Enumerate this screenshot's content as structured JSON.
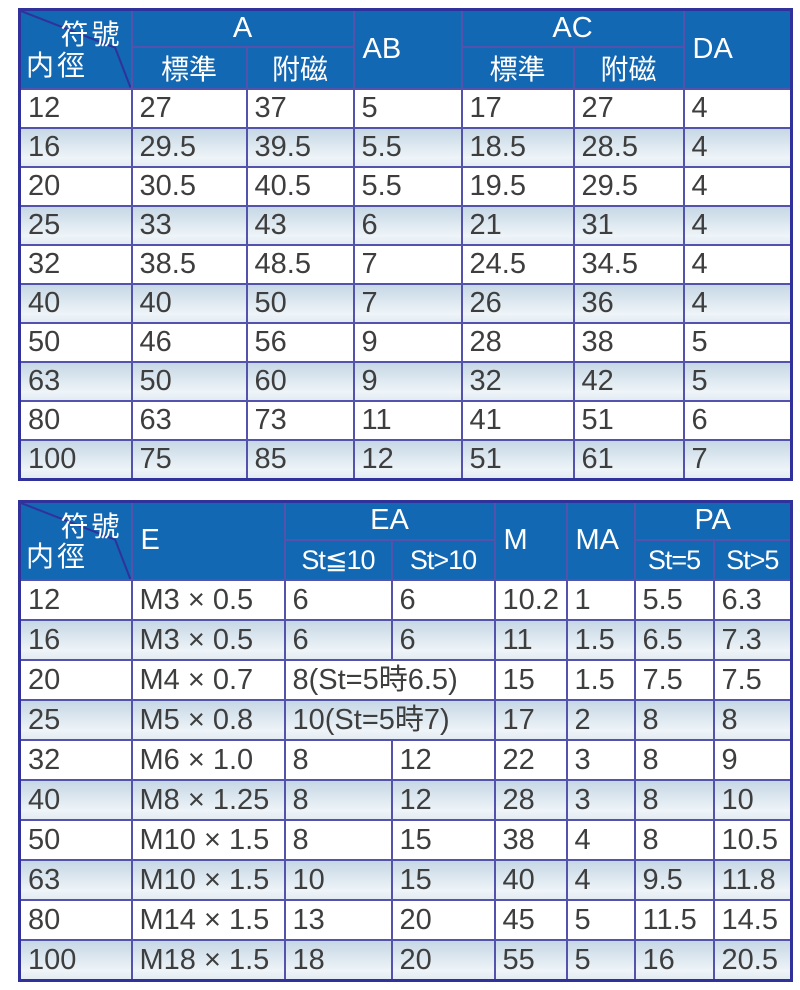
{
  "colors": {
    "header-bg": "#1268b2",
    "header-text": "#ffffff",
    "border-outer": "#31319b",
    "border-inner": "#5353ad",
    "stripe-top": "#c6d7e5",
    "stripe-bottom": "#eef4f8",
    "data-text": "#3e3e3e"
  },
  "table1": {
    "corner_top": "符號",
    "corner_bottom": "内徑",
    "headers": {
      "a": "A",
      "a_standard": "標準",
      "a_magnet": "附磁",
      "ab": "AB",
      "ac": "AC",
      "ac_standard": "標準",
      "ac_magnet": "附磁",
      "da": "DA"
    },
    "rows": [
      [
        "12",
        "27",
        "37",
        "5",
        "17",
        "27",
        "4"
      ],
      [
        "16",
        "29.5",
        "39.5",
        "5.5",
        "18.5",
        "28.5",
        "4"
      ],
      [
        "20",
        "30.5",
        "40.5",
        "5.5",
        "19.5",
        "29.5",
        "4"
      ],
      [
        "25",
        "33",
        "43",
        "6",
        "21",
        "31",
        "4"
      ],
      [
        "32",
        "38.5",
        "48.5",
        "7",
        "24.5",
        "34.5",
        "4"
      ],
      [
        "40",
        "40",
        "50",
        "7",
        "26",
        "36",
        "4"
      ],
      [
        "50",
        "46",
        "56",
        "9",
        "28",
        "38",
        "5"
      ],
      [
        "63",
        "50",
        "60",
        "9",
        "32",
        "42",
        "5"
      ],
      [
        "80",
        "63",
        "73",
        "11",
        "41",
        "51",
        "6"
      ],
      [
        "100",
        "75",
        "85",
        "12",
        "51",
        "61",
        "7"
      ]
    ]
  },
  "table2": {
    "corner_top": "符號",
    "corner_bottom": "内徑",
    "headers": {
      "e": "E",
      "ea": "EA",
      "ea_le10": "St≦10",
      "ea_gt10": "St>10",
      "m": "M",
      "ma": "MA",
      "pa": "PA",
      "pa_eq5": "St=5",
      "pa_gt5": "St>5"
    },
    "rows": [
      [
        "12",
        "M3 × 0.5",
        "6",
        "6",
        "10.2",
        "1",
        "5.5",
        "6.3"
      ],
      [
        "16",
        "M3 × 0.5",
        "6",
        "6",
        "11",
        "1.5",
        "6.5",
        "7.3"
      ],
      [
        "20",
        "M4 × 0.7",
        {
          "text": "8(St=5時6.5)",
          "colspan": 2
        },
        "15",
        "1.5",
        "7.5",
        "7.5"
      ],
      [
        "25",
        "M5 × 0.8",
        {
          "text": "10(St=5時7)",
          "colspan": 2
        },
        "17",
        "2",
        "8",
        "8"
      ],
      [
        "32",
        "M6 × 1.0",
        "8",
        "12",
        "22",
        "3",
        "8",
        "9"
      ],
      [
        "40",
        "M8 × 1.25",
        "8",
        "12",
        "28",
        "3",
        "8",
        "10"
      ],
      [
        "50",
        "M10 × 1.5",
        "8",
        "15",
        "38",
        "4",
        "8",
        "10.5"
      ],
      [
        "63",
        "M10 × 1.5",
        "10",
        "15",
        "40",
        "4",
        "9.5",
        "11.8"
      ],
      [
        "80",
        "M14 × 1.5",
        "13",
        "20",
        "45",
        "5",
        "11.5",
        "14.5"
      ],
      [
        "100",
        "M18 × 1.5",
        "18",
        "20",
        "55",
        "5",
        "16",
        "20.5"
      ]
    ]
  }
}
